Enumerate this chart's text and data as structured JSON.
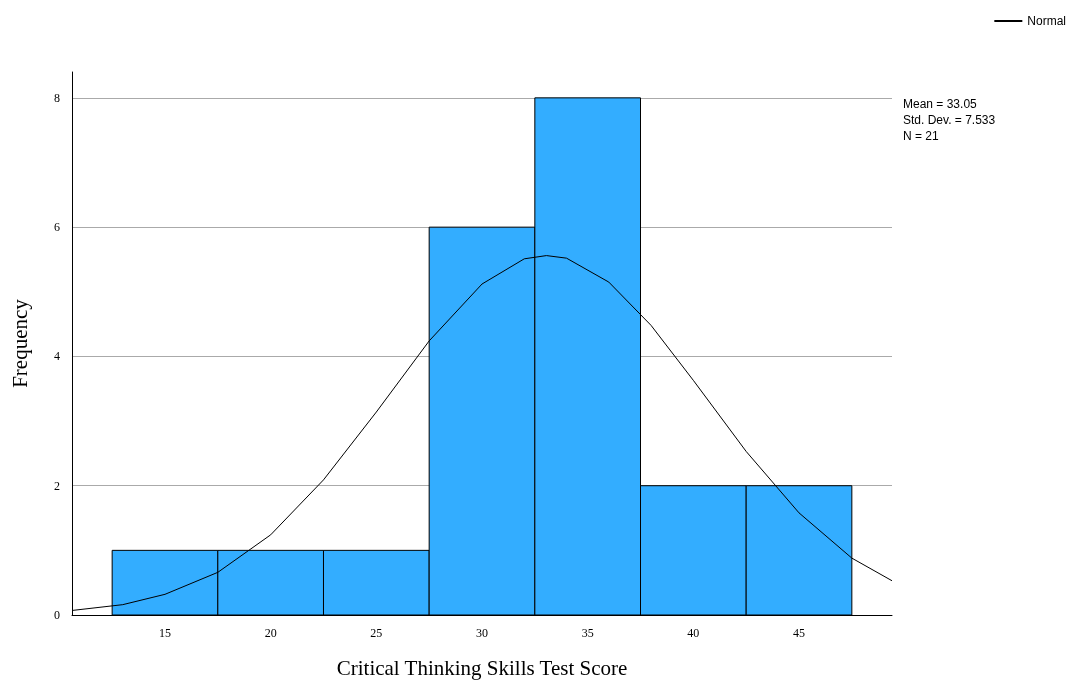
{
  "chart_data": {
    "type": "histogram",
    "xlabel": "Critical Thinking Skills Test Score",
    "ylabel": "Frequency",
    "series": [
      {
        "type": "histogram",
        "bins": [
          12.5,
          17.5,
          22.5,
          27.5,
          32.5,
          37.5,
          42.5,
          47.5
        ],
        "values": [
          1,
          1,
          1,
          6,
          8,
          2,
          2
        ],
        "color": "#33adff"
      },
      {
        "type": "line",
        "name": "Normal",
        "color": "#000000",
        "x": [
          10.6,
          13,
          15,
          17.5,
          20,
          22.5,
          25,
          27.5,
          30,
          32,
          33.05,
          34,
          36,
          38,
          40,
          42.5,
          45,
          47.5,
          49.4
        ],
        "values": [
          0.07,
          0.16,
          0.32,
          0.66,
          1.24,
          2.09,
          3.14,
          4.24,
          5.12,
          5.51,
          5.56,
          5.52,
          5.15,
          4.48,
          3.63,
          2.53,
          1.58,
          0.88,
          0.53
        ]
      }
    ],
    "xlim": [
      10.6,
      49.4
    ],
    "xticks": [
      15,
      20,
      25,
      30,
      35,
      40,
      45
    ],
    "ylim": [
      0,
      8.4
    ],
    "yticks": [
      0,
      2,
      4,
      6,
      8
    ],
    "grid": "y",
    "legend": "top right",
    "marker": "none",
    "line_style": "solid",
    "annotations": [
      "Mean = 33.05",
      "Std. Dev. = 7.533",
      "N = 21"
    ]
  }
}
